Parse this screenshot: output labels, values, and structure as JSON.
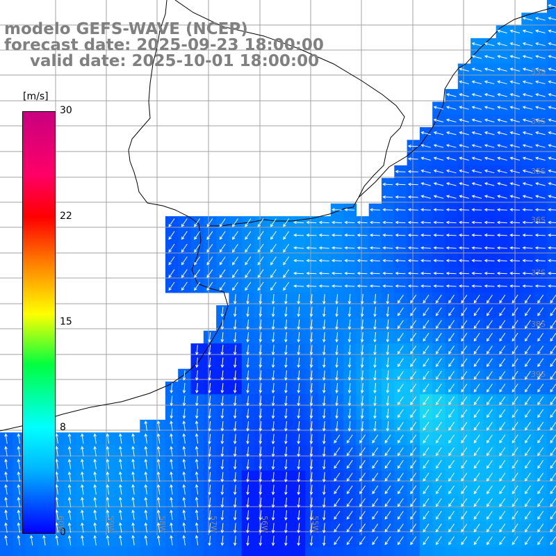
{
  "header": {
    "line1": "modelo GEFS-WAVE (NCEP)",
    "line2": "forecast date: 2025-09-23 18:00:00",
    "line3": "valid date: 2025-10-01 18:00:00"
  },
  "colorbar": {
    "unit": "[m/s]",
    "ticks": [
      "30",
      "22",
      "15",
      "8",
      "0"
    ],
    "range": [
      0,
      30
    ],
    "colors": [
      "#0000ff",
      "#00b4ff",
      "#00ffff",
      "#00ff40",
      "#ffff00",
      "#ff8000",
      "#ff0000",
      "#ff0066",
      "#c80080"
    ]
  },
  "map": {
    "land_color": "#ffffff",
    "coast_color": "#000000",
    "grid_color": "#a0a0a0",
    "grid": true,
    "lon_labels": [
      "60W",
      "59W",
      "58W",
      "57W",
      "56W",
      "55W"
    ],
    "lat_labels": [
      "33S",
      "34S",
      "35S",
      "36S",
      "37S",
      "38S",
      "39S"
    ]
  }
}
